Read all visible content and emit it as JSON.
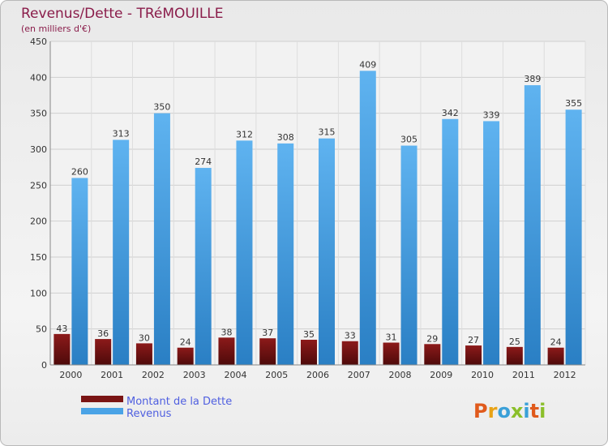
{
  "chart_data": {
    "type": "bar",
    "title": "Revenus/Dette - TRéMOUILLE",
    "subtitle": "(en milliers d'€)",
    "categories": [
      "2000",
      "2001",
      "2002",
      "2003",
      "2004",
      "2005",
      "2006",
      "2007",
      "2008",
      "2009",
      "2010",
      "2011",
      "2012"
    ],
    "series": [
      {
        "name": "Montant de la Dette",
        "color": "#7a1414",
        "values": [
          43,
          36,
          30,
          24,
          38,
          37,
          35,
          33,
          31,
          29,
          27,
          25,
          24
        ]
      },
      {
        "name": "Revenus",
        "color": "#4aa3e6",
        "values": [
          260,
          313,
          350,
          274,
          312,
          308,
          315,
          409,
          305,
          342,
          339,
          389,
          355
        ]
      }
    ],
    "ylim": [
      0,
      450
    ],
    "yticks": [
      0,
      50,
      100,
      150,
      200,
      250,
      300,
      350,
      400,
      450
    ],
    "grid": true,
    "legend_position": "bottom-left"
  },
  "logo": {
    "letters": [
      {
        "ch": "P",
        "color": "#e05a1c"
      },
      {
        "ch": "r",
        "color": "#e8a317"
      },
      {
        "ch": "o",
        "color": "#3aa0d8"
      },
      {
        "ch": "x",
        "color": "#8bbf2a"
      },
      {
        "ch": "i",
        "color": "#3aa0d8"
      },
      {
        "ch": "t",
        "color": "#e05a1c"
      },
      {
        "ch": "i",
        "color": "#8bbf2a"
      }
    ]
  }
}
